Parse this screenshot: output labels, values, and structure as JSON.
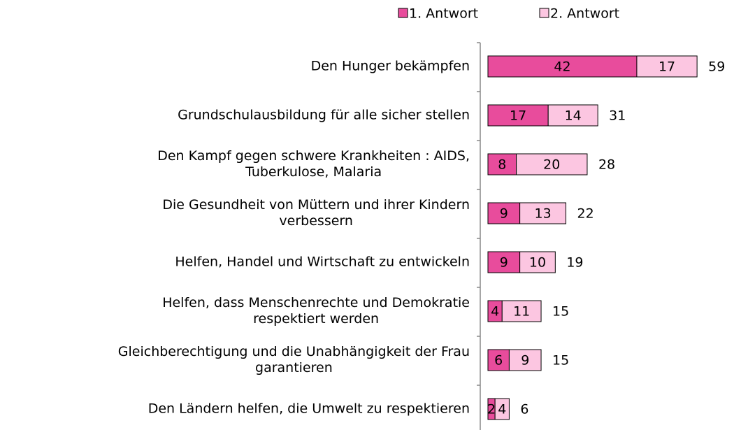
{
  "chart_data": {
    "type": "stacked_bar_horizontal",
    "categories": [
      "Den Hunger bekämpfen",
      "Grundschulausbildung für alle sicher stellen",
      "Den Kampf gegen schwere Krankheiten : AIDS,\nTuberkulose, Malaria",
      "Die Gesundheit von Müttern und ihrer Kindern\nverbessern",
      "Helfen, Handel und Wirtschaft zu entwickeln",
      "Helfen, dass Menschenrechte und Demokratie\nrespektiert werden",
      "Gleichberechtigung und die Unabhängigkeit der Frau\ngarantieren",
      "Den Ländern helfen, die Umwelt zu respektieren"
    ],
    "series": [
      {
        "name": "1. Antwort",
        "color": "#e84c9c",
        "values": [
          42,
          17,
          8,
          9,
          9,
          4,
          6,
          2
        ]
      },
      {
        "name": "2. Antwort",
        "color": "#fcc6e1",
        "values": [
          17,
          14,
          20,
          13,
          10,
          11,
          9,
          4
        ]
      }
    ],
    "totals": [
      59,
      31,
      28,
      22,
      19,
      15,
      15,
      6
    ],
    "legend": "top-right"
  }
}
